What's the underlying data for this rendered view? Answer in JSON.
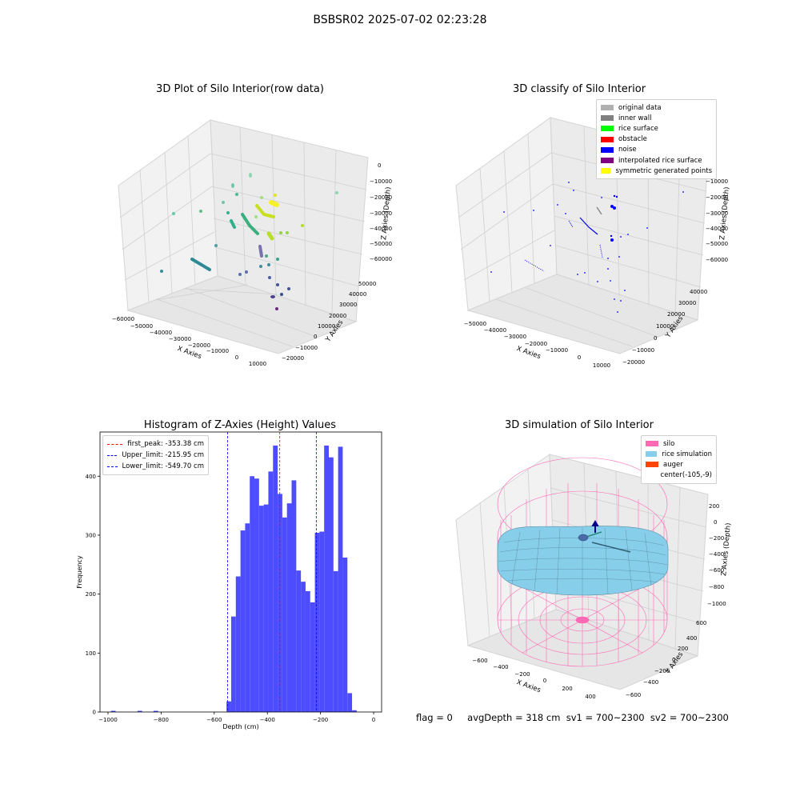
{
  "suptitle": "BSBSR02 2025-07-02 02:23:28",
  "panels": {
    "raw": {
      "title": "3D Plot of Silo Interior(row data)",
      "x_ticks": [
        "−60000",
        "−50000",
        "−40000",
        "−30000",
        "−20000",
        "−10000",
        "0",
        "10000"
      ],
      "y_ticks": [
        "−20000",
        "−10000",
        "0",
        "10000",
        "20000",
        "30000",
        "40000",
        "50000"
      ],
      "z_ticks": [
        "0",
        "−10000",
        "−20000",
        "−30000",
        "−40000",
        "−50000",
        "−60000"
      ],
      "xlabel": "X Axies",
      "ylabel": "Y Axies",
      "zlabel": "Z Axies (Depth)"
    },
    "classify": {
      "title": "3D classify of Silo Interior",
      "x_ticks": [
        "−50000",
        "−40000",
        "−30000",
        "−20000",
        "−10000",
        "0",
        "10000"
      ],
      "y_ticks": [
        "−20000",
        "−10000",
        "0",
        "10000",
        "20000",
        "30000",
        "40000"
      ],
      "z_ticks": [
        "−10000",
        "−20000",
        "−30000",
        "−40000",
        "−50000",
        "−60000"
      ],
      "xlabel": "X Axies",
      "ylabel": "Y Axies",
      "zlabel": "Z Axies (Depth)",
      "legend": [
        {
          "label": "original data",
          "color": "#b0b0b0"
        },
        {
          "label": "inner wall",
          "color": "#808080"
        },
        {
          "label": "rice surface",
          "color": "#00ff00"
        },
        {
          "label": "obstacle",
          "color": "#ff0000"
        },
        {
          "label": "noise",
          "color": "#0000ff"
        },
        {
          "label": "interpolated rice surface",
          "color": "#800080"
        },
        {
          "label": "symmetric generated points",
          "color": "#ffff00"
        }
      ]
    },
    "sim": {
      "title": "3D simulation of Silo Interior",
      "x_ticks": [
        "−600",
        "−400",
        "−200",
        "0",
        "200",
        "400"
      ],
      "y_ticks": [
        "−600",
        "−400",
        "−200",
        "0",
        "200",
        "400",
        "600"
      ],
      "z_ticks": [
        "200",
        "0",
        "−200",
        "−400",
        "−600",
        "−800",
        "−1000"
      ],
      "xlabel": "X Axies",
      "ylabel": "Y Axies",
      "zlabel": "Z Axies (Depth)",
      "legend": [
        {
          "label": "silo",
          "color": "#ff69b4"
        },
        {
          "label": "rice simulation",
          "color": "#87ceeb"
        },
        {
          "label": "auger",
          "color": "#ff4500"
        },
        {
          "label": "center(-105,-9)",
          "color": ""
        }
      ]
    }
  },
  "status": {
    "flag": "flag = 0",
    "summary": "avgDepth = 318 cm  sv1 = 700~2300  sv2 = 700~2300"
  },
  "chart_data": [
    {
      "type": "bar",
      "title": "Histogram of Z-Axies (Height) Values",
      "xlabel": "Depth (cm)",
      "ylabel": "Frequency",
      "xlim": [
        -1030,
        30
      ],
      "ylim": [
        0,
        475
      ],
      "x_ticks": [
        -1000,
        -800,
        -600,
        -400,
        -200,
        0
      ],
      "y_ticks": [
        0,
        100,
        200,
        300,
        400
      ],
      "bar_color": "#4d4dff",
      "bin_width": 17.5,
      "bins": [
        {
          "x": -980,
          "count": 2
        },
        {
          "x": -880,
          "count": 2
        },
        {
          "x": -820,
          "count": 2
        },
        {
          "x": -545,
          "count": 18
        },
        {
          "x": -527.5,
          "count": 162
        },
        {
          "x": -510,
          "count": 230
        },
        {
          "x": -492.5,
          "count": 308
        },
        {
          "x": -475,
          "count": 320
        },
        {
          "x": -457.5,
          "count": 400
        },
        {
          "x": -440,
          "count": 396
        },
        {
          "x": -422.5,
          "count": 350
        },
        {
          "x": -405,
          "count": 352
        },
        {
          "x": -387.5,
          "count": 408
        },
        {
          "x": -370,
          "count": 452
        },
        {
          "x": -352.5,
          "count": 370
        },
        {
          "x": -335,
          "count": 330
        },
        {
          "x": -317.5,
          "count": 354
        },
        {
          "x": -300,
          "count": 393
        },
        {
          "x": -282.5,
          "count": 240
        },
        {
          "x": -265,
          "count": 221
        },
        {
          "x": -247.5,
          "count": 205
        },
        {
          "x": -230,
          "count": 186
        },
        {
          "x": -212.5,
          "count": 304
        },
        {
          "x": -195,
          "count": 306
        },
        {
          "x": -177.5,
          "count": 452
        },
        {
          "x": -160,
          "count": 432
        },
        {
          "x": -142.5,
          "count": 239
        },
        {
          "x": -125,
          "count": 450
        },
        {
          "x": -107.5,
          "count": 262
        },
        {
          "x": -90,
          "count": 32
        },
        {
          "x": -72.5,
          "count": 3
        }
      ],
      "vlines": [
        {
          "label": "first_peak: -353.38 cm",
          "x": -353.38,
          "color": "#ff0000"
        },
        {
          "label": "Upper_limit: -215.95 cm",
          "x": -215.95,
          "color": "#0000ff"
        },
        {
          "label": "Lower_limit: -549.70 cm",
          "x": -549.7,
          "color": "#0000ff"
        }
      ]
    }
  ]
}
